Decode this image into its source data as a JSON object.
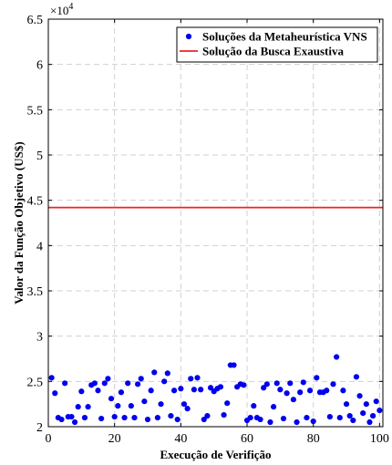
{
  "chart_data": {
    "type": "scatter",
    "xlabel": "Execução de Verifição",
    "ylabel": "Valor da Função Objetivo (US$)",
    "y_exponent_label": "×10",
    "y_exponent_power": "4",
    "xlim": [
      0,
      101
    ],
    "ylim": [
      20000,
      65000
    ],
    "x_ticks": [
      0,
      20,
      40,
      60,
      80,
      100
    ],
    "y_ticks": [
      20000,
      25000,
      30000,
      35000,
      40000,
      45000,
      50000,
      55000,
      60000,
      65000
    ],
    "y_tick_labels": [
      "2",
      "2.5",
      "3",
      "3.5",
      "4",
      "4.5",
      "5",
      "5.5",
      "6",
      "6.5"
    ],
    "grid": true,
    "legend_position": "top-right",
    "series": [
      {
        "name": "Soluções da Metaheurística VNS",
        "kind": "markers",
        "color": "#0000ee",
        "x": [
          1,
          2,
          3,
          4,
          5,
          6,
          7,
          8,
          9,
          10,
          11,
          12,
          13,
          14,
          15,
          16,
          17,
          18,
          19,
          20,
          21,
          22,
          23,
          24,
          25,
          26,
          27,
          28,
          29,
          30,
          31,
          32,
          33,
          34,
          35,
          36,
          37,
          38,
          39,
          40,
          41,
          42,
          43,
          44,
          45,
          46,
          47,
          48,
          49,
          50,
          51,
          52,
          53,
          54,
          55,
          56,
          57,
          58,
          59,
          60,
          61,
          62,
          63,
          64,
          65,
          66,
          67,
          68,
          69,
          70,
          71,
          72,
          73,
          74,
          75,
          76,
          77,
          78,
          79,
          80,
          81,
          82,
          83,
          84,
          85,
          86,
          87,
          88,
          89,
          90,
          91,
          92,
          93,
          94,
          95,
          96,
          97,
          98,
          99,
          100
        ],
        "y": [
          25400,
          23700,
          21000,
          20800,
          24800,
          21100,
          21100,
          20500,
          22200,
          23900,
          21000,
          22200,
          24600,
          24800,
          24000,
          20900,
          24800,
          25300,
          23100,
          21100,
          22300,
          23800,
          21000,
          24800,
          22300,
          21000,
          24700,
          25300,
          22800,
          20800,
          24000,
          26000,
          21000,
          22500,
          25000,
          25900,
          21200,
          24000,
          20800,
          24200,
          22500,
          22000,
          25300,
          24100,
          25400,
          24100,
          20800,
          21200,
          24300,
          23900,
          24200,
          24400,
          21300,
          22600,
          26800,
          26800,
          24400,
          24700,
          24600,
          20700,
          21000,
          22300,
          21000,
          20800,
          24300,
          24700,
          20500,
          22200,
          24800,
          24100,
          20900,
          23700,
          24800,
          23000,
          20500,
          23800,
          24900,
          21000,
          24000,
          20600,
          25400,
          23800,
          23800,
          24000,
          21100,
          24700,
          27700,
          21000,
          24000,
          22500,
          21200,
          20700,
          25500,
          23400,
          21500,
          22500,
          20500,
          21200,
          22800,
          21800
        ]
      },
      {
        "name": "Solução da Busca Exaustiva",
        "kind": "line",
        "color": "#ee2222",
        "x": [
          0,
          101
        ],
        "y": [
          44200,
          44200
        ]
      }
    ]
  }
}
